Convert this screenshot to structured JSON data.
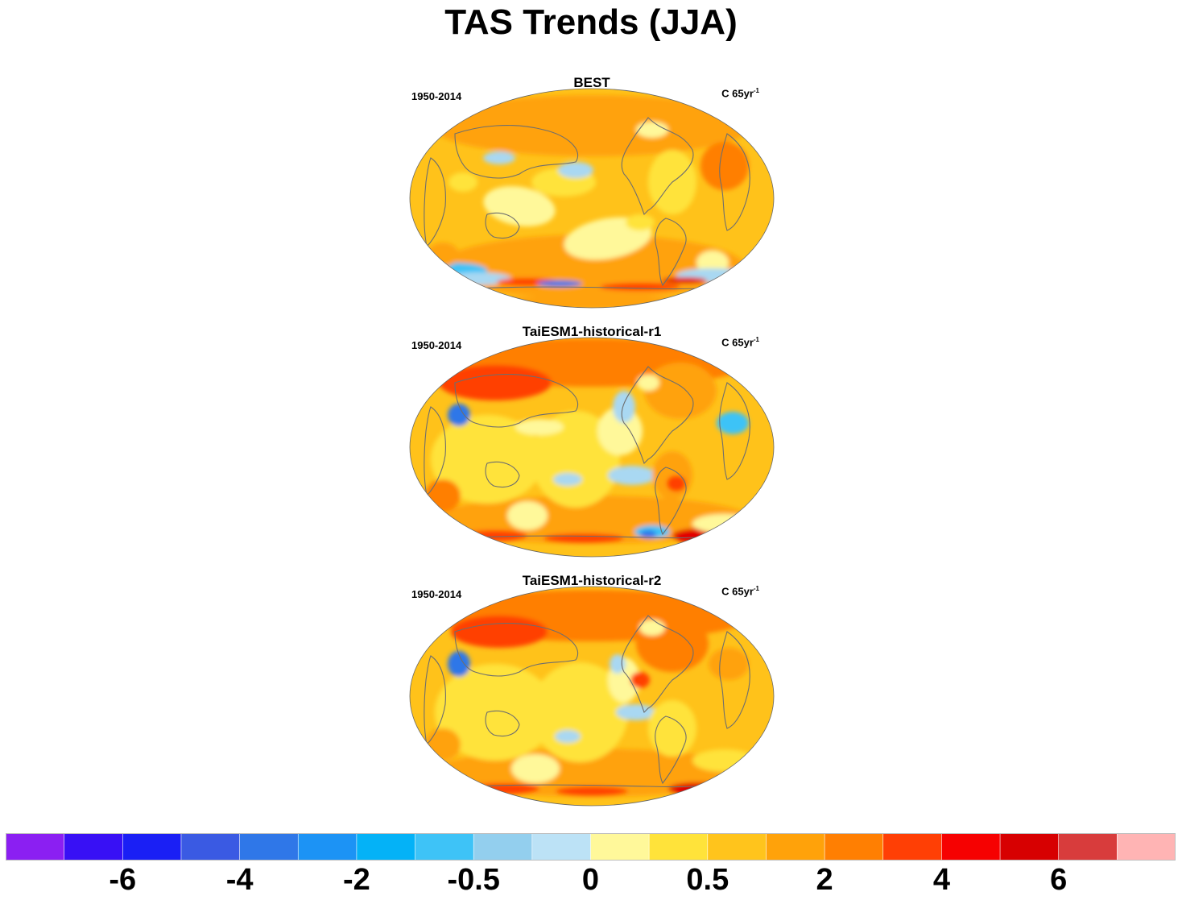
{
  "title": "TAS Trends (JJA)",
  "colors": {
    "ocean_base": "#ffc21a",
    "land_outline": "#6e6e6e",
    "map_border": "#666666"
  },
  "panels": [
    {
      "name": "BEST",
      "period": "1950-2014",
      "units_base": "C 65yr",
      "units_exp": "-1"
    },
    {
      "name": "TaiESM1-historical-r1",
      "period": "1950-2014",
      "units_base": "C 65yr",
      "units_exp": "-1"
    },
    {
      "name": "TaiESM1-historical-r2",
      "period": "1950-2014",
      "units_base": "C 65yr",
      "units_exp": "-1"
    }
  ],
  "colorbar": {
    "colors": [
      "#8b1ff2",
      "#3810f5",
      "#1a1ff5",
      "#3a5ae3",
      "#2f77e8",
      "#1c93f5",
      "#04b2f7",
      "#3ec3f7",
      "#93cfee",
      "#bce2f6",
      "#fff89a",
      "#ffe33a",
      "#ffc41c",
      "#ffa20a",
      "#ff7f02",
      "#ff3f05",
      "#f60101",
      "#d70001",
      "#d83c3c",
      "#ffb4b4"
    ],
    "labels": [
      "-6",
      "-4",
      "-2",
      "-0.5",
      "0",
      "0.5",
      "2",
      "4",
      "6"
    ]
  }
}
